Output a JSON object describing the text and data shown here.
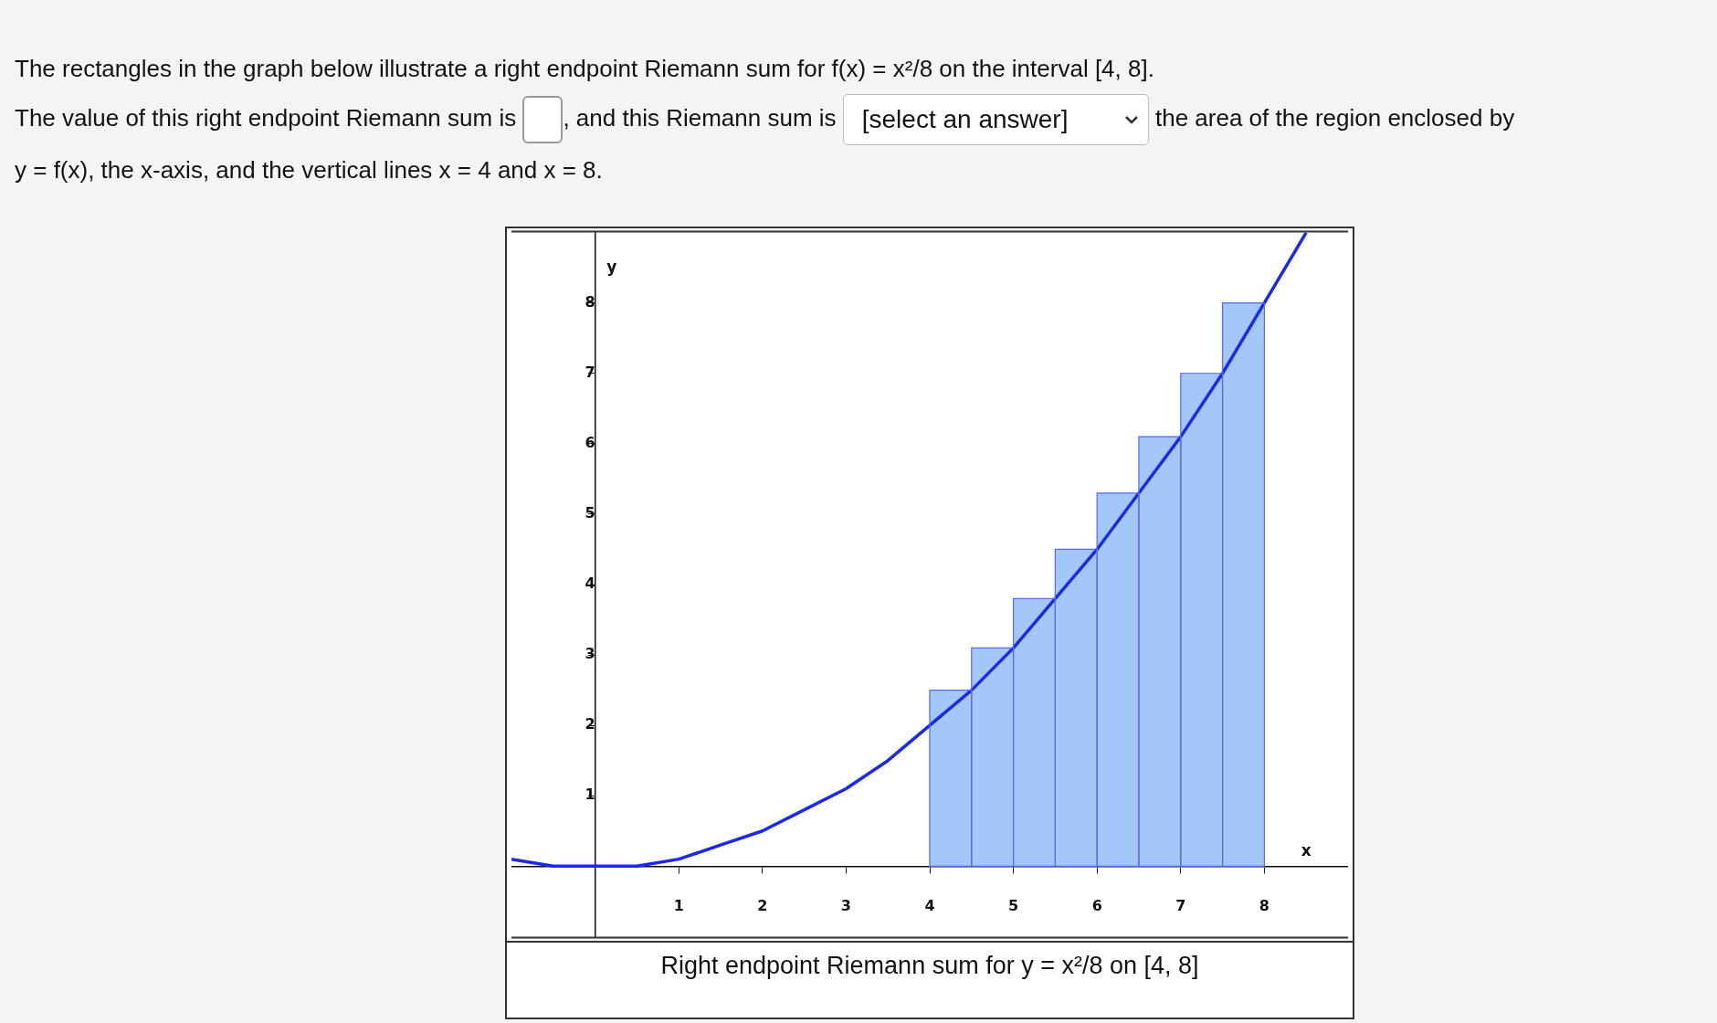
{
  "chart_data": {
    "type": "bar",
    "title": "Right endpoint Riemann sum for y = x²/8 on [4, 8]",
    "xlabel": "x",
    "ylabel": "y",
    "annotations": [
      "The rectangles in the graph below illustrate a right endpoint Riemann sum for f(x) = x²/8 on the interval [4, 8].",
      "The value of this right endpoint Riemann sum is",
      ", and this Riemann sum is",
      "[select an answer]",
      "the area of the region enclosed by",
      "y = f(x), the x-axis, and the vertical lines x = 4 and x = 8."
    ],
    "series": [
      {
        "color": "#a2c8fa",
        "x": [
          4.25,
          4.75,
          5.25,
          5.75,
          6.25,
          6.75,
          7.25,
          7.75
        ],
        "values": [
          2.5,
          3.1,
          3.8,
          4.5,
          5.3,
          6.1,
          7.0,
          8
        ]
      },
      {
        "type": "line",
        "color": "#1a28f0",
        "x": [
          -1,
          -0.5,
          0,
          0.5,
          1,
          1.5,
          2,
          2.5,
          3,
          3.5,
          4,
          4.5,
          5,
          5.5,
          6,
          6.5,
          7,
          7.5,
          8,
          8.5
        ],
        "values": [
          0.1,
          0,
          0,
          0,
          0.1,
          0.3,
          0.5,
          0.8,
          1.1,
          1.5,
          2,
          2.5,
          3.1,
          3.8,
          4.5,
          5.3,
          6.1,
          7.0,
          8,
          9
        ]
      }
    ],
    "xlim": [
      -1,
      9
    ],
    "ylim": [
      -1,
      9
    ],
    "xticks": [
      1,
      2,
      3,
      4,
      5,
      6,
      7,
      8
    ],
    "yticks": [
      1,
      2,
      3,
      4,
      5,
      6,
      7,
      8
    ],
    "grid": false,
    "legend": false,
    "marker": "none",
    "line_style": "solid"
  }
}
